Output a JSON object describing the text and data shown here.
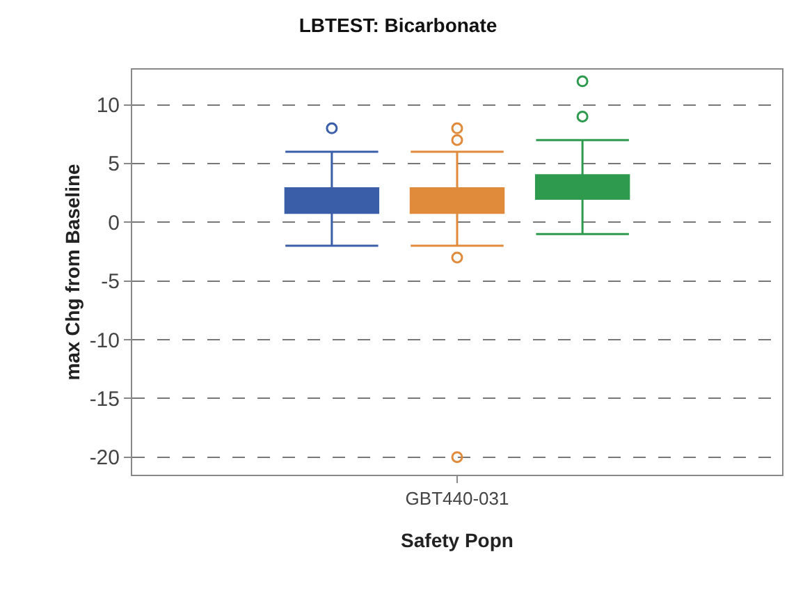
{
  "chart_data": {
    "type": "box",
    "title": "LBTEST: Bicarbonate",
    "xlabel": "Safety Popn",
    "ylabel": "max Chg from Baseline",
    "categories": [
      "GBT440-031"
    ],
    "series": [
      {
        "color": "#3b5ea8",
        "boxes": [
          {
            "low": -2,
            "q1": 0.8,
            "median": 2,
            "q3": 2.9,
            "high": 6,
            "outliers": [
              8
            ]
          }
        ]
      },
      {
        "color": "#e08a3c",
        "boxes": [
          {
            "low": -2,
            "q1": 0.8,
            "median": 2,
            "q3": 2.9,
            "high": 6,
            "outliers": [
              8,
              7,
              -3,
              -20
            ]
          }
        ]
      },
      {
        "color": "#2e9a4e",
        "boxes": [
          {
            "low": -1,
            "q1": 2,
            "median": 2,
            "q3": 4,
            "high": 7,
            "outliers": [
              12,
              9
            ]
          }
        ]
      }
    ],
    "ylim": [
      -21.5,
      13
    ],
    "yticks": [
      -20,
      -15,
      -10,
      -5,
      0,
      5,
      10
    ],
    "grid": "y",
    "marker": "circle"
  }
}
